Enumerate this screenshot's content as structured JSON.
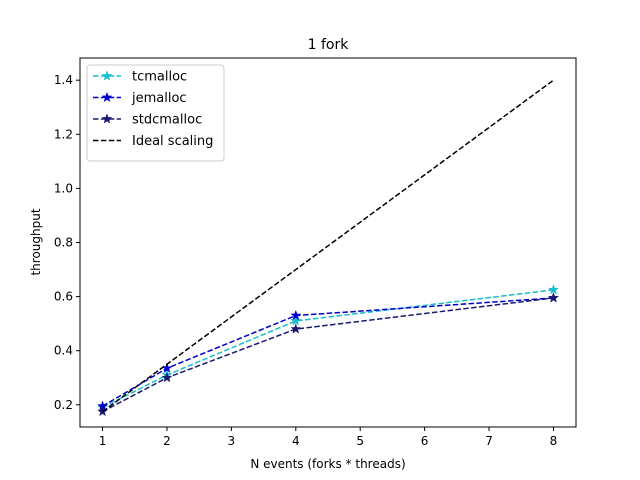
{
  "chart_data": {
    "type": "line",
    "title": "1 fork",
    "xlabel": "N events (forks * threads)",
    "ylabel": "throughput",
    "xlim": [
      0.65,
      8.35
    ],
    "ylim": [
      0.118,
      1.482
    ],
    "xticks": [
      1,
      2,
      3,
      4,
      5,
      6,
      7,
      8
    ],
    "xtick_labels": [
      "1",
      "2",
      "3",
      "4",
      "5",
      "6",
      "7",
      "8"
    ],
    "yticks": [
      0.2,
      0.4,
      0.6,
      0.8,
      1.0,
      1.2,
      1.4
    ],
    "ytick_labels": [
      "0.2",
      "0.4",
      "0.6",
      "0.8",
      "1.0",
      "1.2",
      "1.4"
    ],
    "grid": false,
    "legend_position": "top-left",
    "series": [
      {
        "name": "tcmalloc",
        "color": "#17becf",
        "linestyle": "dashed",
        "marker": "star",
        "x": [
          1,
          2,
          4,
          8
        ],
        "y": [
          0.19,
          0.31,
          0.51,
          0.625
        ]
      },
      {
        "name": "jemalloc",
        "color": "#0000cd",
        "linestyle": "dashed",
        "marker": "star",
        "x": [
          1,
          2,
          4,
          8
        ],
        "y": [
          0.195,
          0.335,
          0.53,
          0.595
        ]
      },
      {
        "name": "stdcmalloc",
        "color": "#191970",
        "linestyle": "dashed",
        "marker": "star",
        "x": [
          1,
          2,
          4,
          8
        ],
        "y": [
          0.175,
          0.3,
          0.48,
          0.595
        ]
      },
      {
        "name": "Ideal scaling",
        "color": "#000000",
        "linestyle": "dashed",
        "marker": "none",
        "x": [
          1,
          2,
          4,
          8
        ],
        "y": [
          0.175,
          0.35,
          0.7,
          1.4
        ]
      }
    ]
  }
}
